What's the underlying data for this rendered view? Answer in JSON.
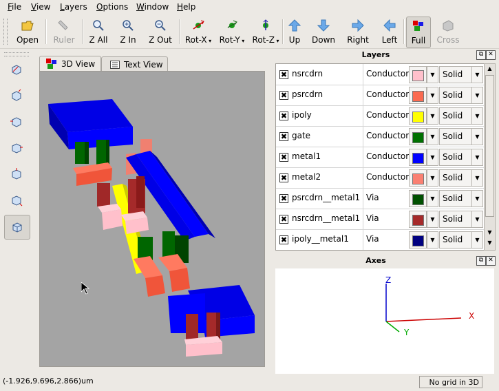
{
  "menubar": {
    "items": [
      {
        "label": "File",
        "u": "F",
        "rest": "ile"
      },
      {
        "label": "View",
        "u": "V",
        "rest": "iew"
      },
      {
        "label": "Layers",
        "u": "L",
        "rest": "ayers"
      },
      {
        "label": "Options",
        "u": "O",
        "rest": "ptions"
      },
      {
        "label": "Window",
        "u": "W",
        "rest": "indow"
      },
      {
        "label": "Help",
        "u": "H",
        "rest": "elp"
      }
    ]
  },
  "toolbar": {
    "open": "Open",
    "ruler": "Ruler",
    "zall": "Z All",
    "zin": "Z In",
    "zout": "Z Out",
    "rotx": "Rot-X",
    "roty": "Rot-Y",
    "rotz": "Rot-Z",
    "up": "Up",
    "down": "Down",
    "right": "Right",
    "left": "Left",
    "full": "Full",
    "cross": "Cross"
  },
  "tabs": {
    "view3d": "3D View",
    "textview": "Text View"
  },
  "layers_panel": {
    "title": "Layers",
    "rows": [
      {
        "name": "nsrcdrn",
        "type": "Conductor",
        "color": "#ffc0cb",
        "fill": "Solid",
        "checked": "✖"
      },
      {
        "name": "psrcdrn",
        "type": "Conductor",
        "color": "#fa6a50",
        "fill": "Solid",
        "checked": "✖"
      },
      {
        "name": "ipoly",
        "type": "Conductor",
        "color": "#ffff00",
        "fill": "Solid",
        "checked": "✖"
      },
      {
        "name": "gate",
        "type": "Conductor",
        "color": "#007000",
        "fill": "Solid",
        "checked": "✖"
      },
      {
        "name": "metal1",
        "type": "Conductor",
        "color": "#0000ff",
        "fill": "Solid",
        "checked": "✖"
      },
      {
        "name": "metal2",
        "type": "Conductor",
        "color": "#fa8072",
        "fill": "Solid",
        "checked": "✖"
      },
      {
        "name": "psrcdrn__metal1",
        "type": "Via",
        "color": "#005000",
        "fill": "Solid",
        "checked": "✖"
      },
      {
        "name": "nsrcdrn__metal1",
        "type": "Via",
        "color": "#a52a2a",
        "fill": "Solid",
        "checked": "✖"
      },
      {
        "name": "ipoly__metal1",
        "type": "Via",
        "color": "#000080",
        "fill": "Solid",
        "checked": "✖"
      }
    ]
  },
  "axes_panel": {
    "title": "Axes",
    "x_label": "X",
    "y_label": "Y",
    "z_label": "Z",
    "x_color": "#cc0000",
    "y_color": "#00aa00",
    "z_color": "#0000cc"
  },
  "status": {
    "coords": "(-1.926,9.696,2.866)um",
    "grid": "No grid in 3D"
  }
}
